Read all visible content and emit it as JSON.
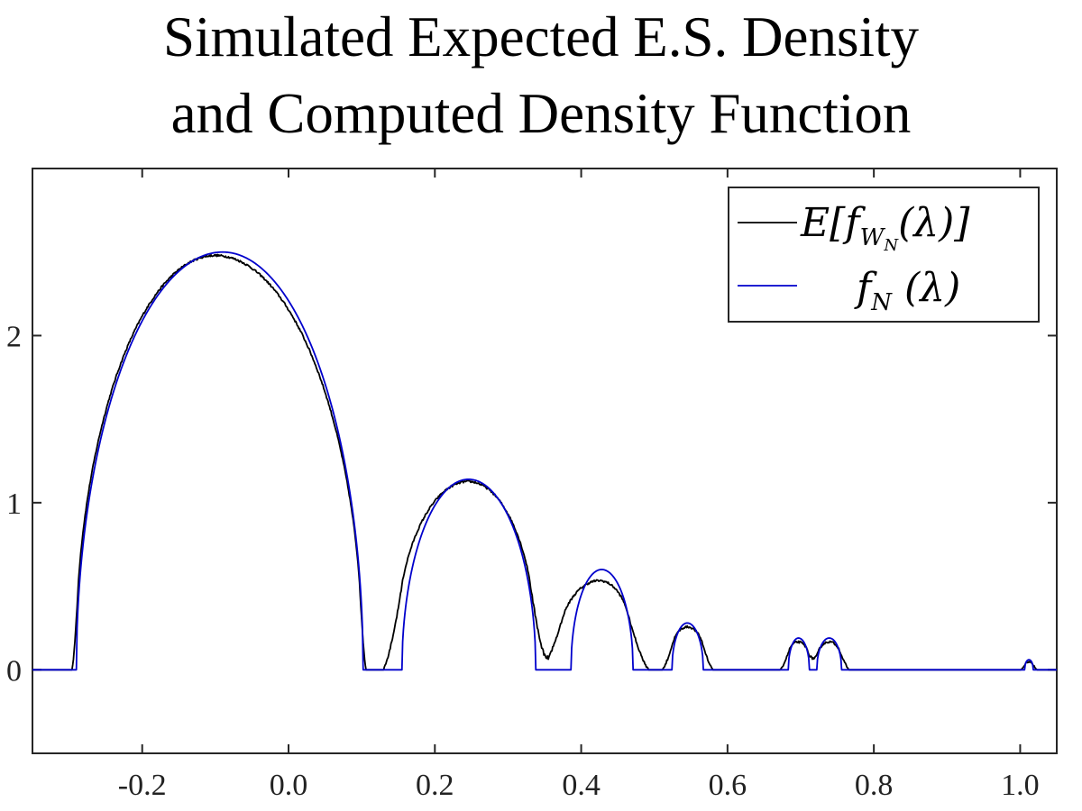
{
  "title_lines": [
    "Simulated Expected E.S. Density",
    "and Computed Density Function"
  ],
  "chart_data": {
    "type": "line",
    "title": "Simulated Expected E.S. Density and Computed Density Function",
    "xlabel": "",
    "ylabel": "",
    "xlim": [
      -0.35,
      1.05
    ],
    "ylim": [
      -0.5,
      3.0
    ],
    "xticks": [
      -0.2,
      0.0,
      0.2,
      0.4,
      0.6,
      0.8,
      1.0
    ],
    "xtick_labels": [
      "-0.2",
      "0.0",
      "0.2",
      "0.4",
      "0.6",
      "0.8",
      "1.0"
    ],
    "yticks": [
      0,
      1,
      2
    ],
    "ytick_labels": [
      "0",
      "1",
      "2"
    ],
    "grid": false,
    "legend_position": "top-right",
    "series": [
      {
        "name": "E[f_{W_N}(λ)]",
        "color": "#000000",
        "bumps": [
          {
            "a": -0.292,
            "b": 0.102,
            "peak": 2.48,
            "peak_x": -0.1,
            "soft": 0.004
          },
          {
            "a": 0.142,
            "b": 0.343,
            "peak": 1.13,
            "peak_x": 0.246,
            "soft": 0.012
          },
          {
            "a": 0.36,
            "b": 0.478,
            "peak": 0.54,
            "peak_x": 0.426,
            "soft": 0.014
          },
          {
            "a": 0.518,
            "b": 0.573,
            "peak": 0.26,
            "peak_x": 0.545,
            "soft": 0.007
          },
          {
            "a": 0.678,
            "b": 0.716,
            "peak": 0.17,
            "peak_x": 0.696,
            "soft": 0.006
          },
          {
            "a": 0.718,
            "b": 0.76,
            "peak": 0.17,
            "peak_x": 0.739,
            "soft": 0.006
          },
          {
            "a": 1.004,
            "b": 1.02,
            "peak": 0.05,
            "peak_x": 1.012,
            "soft": 0.003
          }
        ]
      },
      {
        "name": "f_N (λ)",
        "color": "#0000cc",
        "bumps": [
          {
            "a": -0.29,
            "b": 0.102,
            "peak": 2.5,
            "peak_x": -0.09,
            "soft": 0
          },
          {
            "a": 0.155,
            "b": 0.338,
            "peak": 1.14,
            "peak_x": 0.246,
            "soft": 0
          },
          {
            "a": 0.386,
            "b": 0.471,
            "peak": 0.6,
            "peak_x": 0.428,
            "soft": 0
          },
          {
            "a": 0.524,
            "b": 0.567,
            "peak": 0.28,
            "peak_x": 0.545,
            "soft": 0
          },
          {
            "a": 0.683,
            "b": 0.712,
            "peak": 0.19,
            "peak_x": 0.697,
            "soft": 0
          },
          {
            "a": 0.722,
            "b": 0.756,
            "peak": 0.19,
            "peak_x": 0.739,
            "soft": 0
          },
          {
            "a": 1.006,
            "b": 1.018,
            "peak": 0.06,
            "peak_x": 1.012,
            "soft": 0
          }
        ]
      }
    ]
  }
}
